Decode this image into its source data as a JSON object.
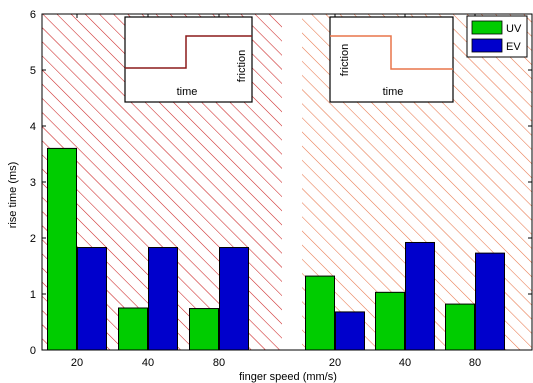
{
  "chart_data": {
    "type": "bar",
    "xlabel": "finger speed (mm/s)",
    "ylabel": "rise time (ms)",
    "ylim": [
      0,
      6
    ],
    "yticks": [
      "0",
      "1",
      "2",
      "3",
      "4",
      "5",
      "6"
    ],
    "categories": [
      "20",
      "40",
      "80",
      "20",
      "40",
      "80"
    ],
    "groups": [
      {
        "region": "left",
        "categories": [
          "20",
          "40",
          "80"
        ]
      },
      {
        "region": "right",
        "categories": [
          "20",
          "40",
          "80"
        ]
      }
    ],
    "series": [
      {
        "name": "UV",
        "color": "#00cc00",
        "values": [
          3.6,
          0.75,
          0.74,
          1.32,
          1.03,
          0.82
        ]
      },
      {
        "name": "EV",
        "color": "#0000cc",
        "values": [
          1.83,
          1.83,
          1.83,
          0.68,
          1.92,
          1.73
        ]
      }
    ],
    "legend": {
      "placement": "top-right",
      "entries": [
        "UV",
        "EV"
      ]
    },
    "grid": false,
    "hatch_colors": {
      "left": "#cc2222",
      "right": "#e8754a"
    },
    "insets": [
      {
        "region": "left",
        "xlabel": "time",
        "ylabel": "friction",
        "shape": "step-up",
        "color": "#8b1a1a"
      },
      {
        "region": "right",
        "xlabel": "time",
        "ylabel": "friction",
        "shape": "step-down",
        "color": "#e8754a"
      }
    ]
  }
}
